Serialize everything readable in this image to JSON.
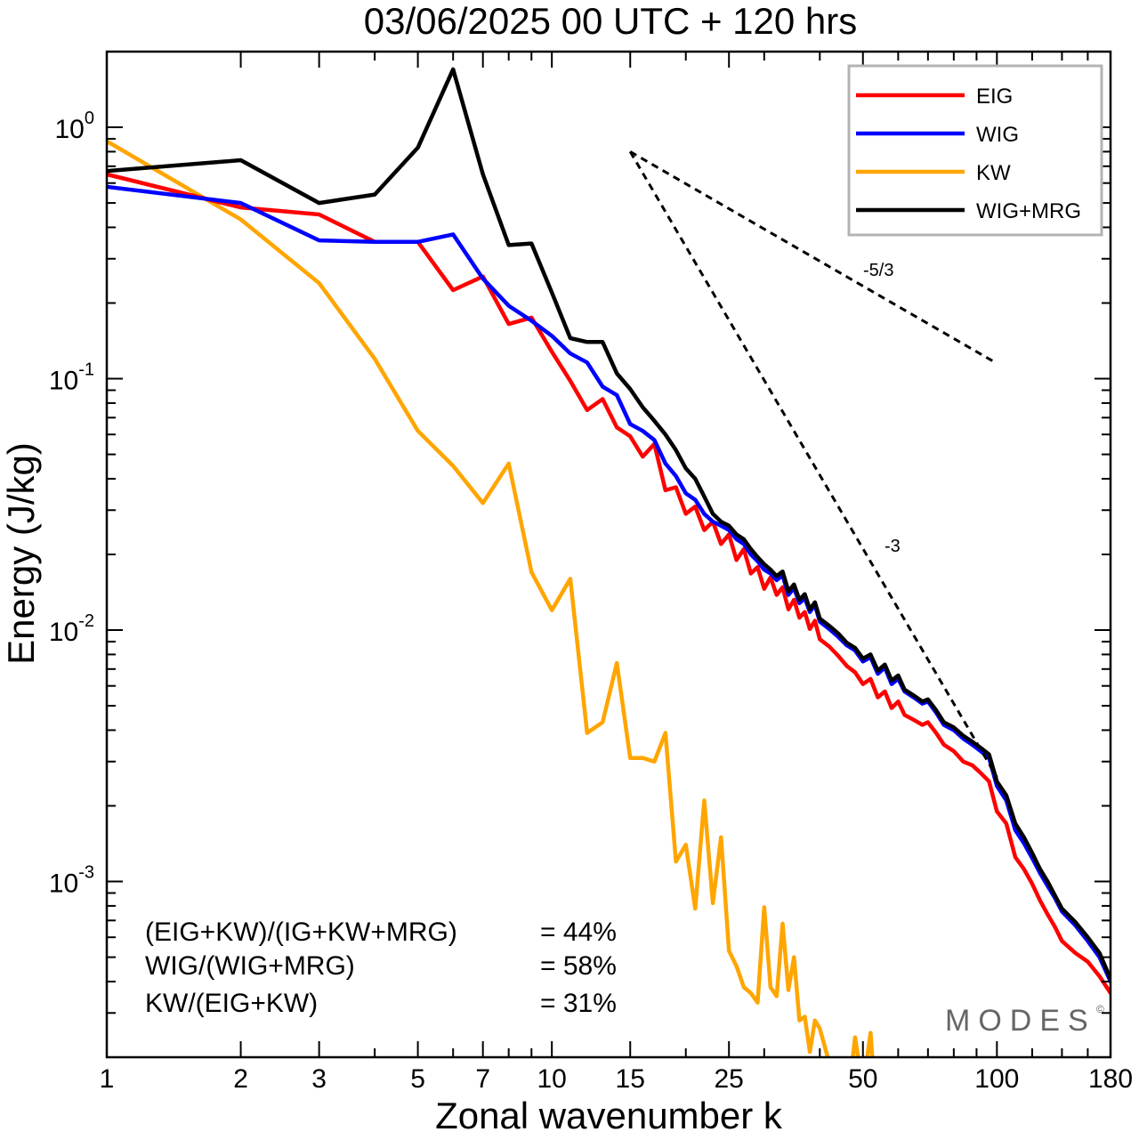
{
  "chart_data": {
    "type": "line",
    "title": "03/06/2025  00 UTC  + 120 hrs",
    "xlabel": "Zonal wavenumber k",
    "ylabel": "Energy (J/kg)",
    "xscale": "log",
    "yscale": "log",
    "xlim": [
      1,
      180
    ],
    "ylim": [
      0.0002,
      2.0
    ],
    "grid": false,
    "legend_position": "top-right",
    "x_ticks": [
      1,
      2,
      3,
      5,
      7,
      10,
      15,
      25,
      50,
      100,
      180
    ],
    "x_tick_labels": [
      "1",
      "2",
      "3",
      "5",
      "7",
      "10",
      "15",
      "25",
      "50",
      "100",
      "180"
    ],
    "y_ticks": [
      {
        "value": 1.0,
        "mantissa": "10",
        "exponent": "0"
      },
      {
        "value": 0.1,
        "mantissa": "10",
        "exponent": "-1"
      },
      {
        "value": 0.01,
        "mantissa": "10",
        "exponent": "-2"
      },
      {
        "value": 0.001,
        "mantissa": "10",
        "exponent": "-3"
      }
    ],
    "series": [
      {
        "name": "EIG",
        "color": "#ff0000",
        "points": [
          [
            1,
            0.65
          ],
          [
            2,
            0.48
          ],
          [
            3,
            0.45
          ],
          [
            4,
            0.35
          ],
          [
            5,
            0.35
          ],
          [
            6,
            0.225
          ],
          [
            7,
            0.255
          ],
          [
            8,
            0.165
          ],
          [
            9,
            0.175
          ],
          [
            10,
            0.128
          ],
          [
            11,
            0.098
          ],
          [
            12,
            0.075
          ],
          [
            13,
            0.083
          ],
          [
            14,
            0.064
          ],
          [
            15,
            0.059
          ],
          [
            16,
            0.049
          ],
          [
            17,
            0.055
          ],
          [
            18,
            0.036
          ],
          [
            19,
            0.037
          ],
          [
            20,
            0.029
          ],
          [
            21,
            0.031
          ],
          [
            22,
            0.025
          ],
          [
            23,
            0.027
          ],
          [
            24,
            0.022
          ],
          [
            25,
            0.024
          ],
          [
            26,
            0.019
          ],
          [
            27,
            0.021
          ],
          [
            28,
            0.0168
          ],
          [
            29,
            0.0178
          ],
          [
            30,
            0.0146
          ],
          [
            31,
            0.0162
          ],
          [
            32,
            0.0138
          ],
          [
            33,
            0.0148
          ],
          [
            34,
            0.0121
          ],
          [
            35,
            0.0132
          ],
          [
            36,
            0.0112
          ],
          [
            37,
            0.0118
          ],
          [
            38,
            0.0101
          ],
          [
            39,
            0.0109
          ],
          [
            40,
            0.0092
          ],
          [
            42,
            0.0086
          ],
          [
            44,
            0.0079
          ],
          [
            46,
            0.0072
          ],
          [
            48,
            0.0068
          ],
          [
            50,
            0.0061
          ],
          [
            52,
            0.0064
          ],
          [
            54,
            0.0054
          ],
          [
            56,
            0.0057
          ],
          [
            58,
            0.0049
          ],
          [
            60,
            0.0052
          ],
          [
            62,
            0.0046
          ],
          [
            65,
            0.0044
          ],
          [
            68,
            0.0042
          ],
          [
            70,
            0.0043
          ],
          [
            73,
            0.0039
          ],
          [
            76,
            0.0035
          ],
          [
            80,
            0.0033
          ],
          [
            84,
            0.003
          ],
          [
            88,
            0.0029
          ],
          [
            92,
            0.0027
          ],
          [
            96,
            0.0025
          ],
          [
            100,
            0.0019
          ],
          [
            105,
            0.0017
          ],
          [
            110,
            0.00125
          ],
          [
            115,
            0.00112
          ],
          [
            120,
            0.00098
          ],
          [
            125,
            0.00084
          ],
          [
            130,
            0.00074
          ],
          [
            135,
            0.00066
          ],
          [
            140,
            0.00058
          ],
          [
            150,
            0.00052
          ],
          [
            160,
            0.00048
          ],
          [
            170,
            0.00042
          ],
          [
            180,
            0.00036
          ]
        ]
      },
      {
        "name": "WIG",
        "color": "#0000ff",
        "points": [
          [
            1,
            0.58
          ],
          [
            2,
            0.5
          ],
          [
            3,
            0.355
          ],
          [
            4,
            0.35
          ],
          [
            5,
            0.35
          ],
          [
            6,
            0.375
          ],
          [
            7,
            0.25
          ],
          [
            8,
            0.195
          ],
          [
            9,
            0.17
          ],
          [
            10,
            0.148
          ],
          [
            11,
            0.126
          ],
          [
            12,
            0.116
          ],
          [
            13,
            0.093
          ],
          [
            14,
            0.086
          ],
          [
            15,
            0.066
          ],
          [
            16,
            0.062
          ],
          [
            17,
            0.057
          ],
          [
            18,
            0.046
          ],
          [
            19,
            0.041
          ],
          [
            20,
            0.035
          ],
          [
            21,
            0.033
          ],
          [
            22,
            0.029
          ],
          [
            23,
            0.027
          ],
          [
            24,
            0.026
          ],
          [
            25,
            0.025
          ],
          [
            26,
            0.023
          ],
          [
            27,
            0.022
          ],
          [
            28,
            0.02
          ],
          [
            29,
            0.0188
          ],
          [
            30,
            0.0174
          ],
          [
            31,
            0.0168
          ],
          [
            32,
            0.0158
          ],
          [
            33,
            0.0165
          ],
          [
            34,
            0.0138
          ],
          [
            35,
            0.0147
          ],
          [
            36,
            0.0128
          ],
          [
            37,
            0.0134
          ],
          [
            38,
            0.0118
          ],
          [
            39,
            0.0126
          ],
          [
            40,
            0.0108
          ],
          [
            42,
            0.0101
          ],
          [
            44,
            0.0094
          ],
          [
            46,
            0.0087
          ],
          [
            48,
            0.0083
          ],
          [
            50,
            0.0075
          ],
          [
            52,
            0.0078
          ],
          [
            54,
            0.0067
          ],
          [
            56,
            0.0071
          ],
          [
            58,
            0.0061
          ],
          [
            60,
            0.0064
          ],
          [
            62,
            0.0057
          ],
          [
            65,
            0.0054
          ],
          [
            68,
            0.0051
          ],
          [
            70,
            0.0052
          ],
          [
            73,
            0.0047
          ],
          [
            76,
            0.0042
          ],
          [
            80,
            0.004
          ],
          [
            84,
            0.0037
          ],
          [
            88,
            0.0035
          ],
          [
            92,
            0.0033
          ],
          [
            96,
            0.0031
          ],
          [
            100,
            0.0024
          ],
          [
            105,
            0.0021
          ],
          [
            110,
            0.0016
          ],
          [
            115,
            0.00142
          ],
          [
            120,
            0.00124
          ],
          [
            125,
            0.00108
          ],
          [
            130,
            0.00096
          ],
          [
            135,
            0.00086
          ],
          [
            140,
            0.00076
          ],
          [
            150,
            0.00067
          ],
          [
            160,
            0.00058
          ],
          [
            170,
            0.0005
          ],
          [
            180,
            0.0004
          ]
        ]
      },
      {
        "name": "KW",
        "color": "#ffa500",
        "points": [
          [
            1,
            0.88
          ],
          [
            2,
            0.43
          ],
          [
            3,
            0.24
          ],
          [
            4,
            0.12
          ],
          [
            5,
            0.062
          ],
          [
            6,
            0.045
          ],
          [
            7,
            0.032
          ],
          [
            8,
            0.046
          ],
          [
            9,
            0.017
          ],
          [
            10,
            0.012
          ],
          [
            11,
            0.016
          ],
          [
            12,
            0.0039
          ],
          [
            13,
            0.0043
          ],
          [
            14,
            0.0074
          ],
          [
            15,
            0.0031
          ],
          [
            16,
            0.0031
          ],
          [
            17,
            0.003
          ],
          [
            18,
            0.0039
          ],
          [
            19,
            0.0012
          ],
          [
            20,
            0.0014
          ],
          [
            21,
            0.00078
          ],
          [
            22,
            0.0021
          ],
          [
            23,
            0.00082
          ],
          [
            24,
            0.0015
          ],
          [
            25,
            0.00053
          ],
          [
            26,
            0.00046
          ],
          [
            27,
            0.00038
          ],
          [
            28,
            0.00036
          ],
          [
            29,
            0.00033
          ],
          [
            30,
            0.00079
          ],
          [
            31,
            0.00038
          ],
          [
            32,
            0.00035
          ],
          [
            33,
            0.00068
          ],
          [
            34,
            0.00037
          ],
          [
            35,
            0.0005
          ],
          [
            36,
            0.00028
          ],
          [
            37,
            0.00029
          ],
          [
            38,
            0.00021
          ],
          [
            39,
            0.00028
          ],
          [
            40,
            0.00026
          ],
          [
            42,
            0.00019
          ],
          [
            44,
            0.00016
          ],
          [
            46,
            0.00012
          ],
          [
            48,
            0.00024
          ],
          [
            50,
            0.00015
          ],
          [
            52,
            0.00025
          ],
          [
            54,
            0.0001
          ]
        ]
      },
      {
        "name": "WIG+MRG",
        "color": "#000000",
        "points": [
          [
            1,
            0.67
          ],
          [
            2,
            0.74
          ],
          [
            3,
            0.5
          ],
          [
            4,
            0.54
          ],
          [
            5,
            0.83
          ],
          [
            6,
            1.7
          ],
          [
            7,
            0.65
          ],
          [
            8,
            0.34
          ],
          [
            9,
            0.345
          ],
          [
            10,
            0.22
          ],
          [
            11,
            0.145
          ],
          [
            12,
            0.14
          ],
          [
            13,
            0.14
          ],
          [
            14,
            0.105
          ],
          [
            15,
            0.091
          ],
          [
            16,
            0.077
          ],
          [
            17,
            0.068
          ],
          [
            18,
            0.06
          ],
          [
            19,
            0.052
          ],
          [
            20,
            0.044
          ],
          [
            21,
            0.04
          ],
          [
            22,
            0.034
          ],
          [
            23,
            0.029
          ],
          [
            24,
            0.027
          ],
          [
            25,
            0.026
          ],
          [
            26,
            0.024
          ],
          [
            27,
            0.023
          ],
          [
            28,
            0.021
          ],
          [
            29,
            0.0195
          ],
          [
            30,
            0.0183
          ],
          [
            31,
            0.0174
          ],
          [
            32,
            0.0164
          ],
          [
            33,
            0.0171
          ],
          [
            34,
            0.0143
          ],
          [
            35,
            0.0152
          ],
          [
            36,
            0.0132
          ],
          [
            37,
            0.0139
          ],
          [
            38,
            0.0121
          ],
          [
            39,
            0.0129
          ],
          [
            40,
            0.0111
          ],
          [
            42,
            0.0104
          ],
          [
            44,
            0.0097
          ],
          [
            46,
            0.0089
          ],
          [
            48,
            0.0085
          ],
          [
            50,
            0.0077
          ],
          [
            52,
            0.008
          ],
          [
            54,
            0.0069
          ],
          [
            56,
            0.0073
          ],
          [
            58,
            0.0063
          ],
          [
            60,
            0.0066
          ],
          [
            62,
            0.0058
          ],
          [
            65,
            0.0055
          ],
          [
            68,
            0.0052
          ],
          [
            70,
            0.0053
          ],
          [
            73,
            0.0048
          ],
          [
            76,
            0.0043
          ],
          [
            80,
            0.0041
          ],
          [
            84,
            0.0038
          ],
          [
            88,
            0.0036
          ],
          [
            92,
            0.0034
          ],
          [
            96,
            0.0032
          ],
          [
            100,
            0.0025
          ],
          [
            105,
            0.0022
          ],
          [
            110,
            0.0017
          ],
          [
            115,
            0.0015
          ],
          [
            120,
            0.0013
          ],
          [
            125,
            0.00112
          ],
          [
            130,
            0.001
          ],
          [
            135,
            0.00088
          ],
          [
            140,
            0.00078
          ],
          [
            150,
            0.00069
          ],
          [
            160,
            0.0006
          ],
          [
            170,
            0.00052
          ],
          [
            180,
            0.00041
          ]
        ]
      }
    ],
    "reference_lines": [
      {
        "label": "-5/3",
        "style": "dashed",
        "points": [
          [
            15,
            0.8
          ],
          [
            100,
            0.115
          ]
        ]
      },
      {
        "label": "-3",
        "style": "dashed",
        "points": [
          [
            15,
            0.8
          ],
          [
            100,
            0.0026
          ]
        ]
      }
    ],
    "annotations": [
      {
        "label": "(EIG+KW)/(IG+KW+MRG)",
        "value": "= 44%"
      },
      {
        "label": "WIG/(WIG+MRG)",
        "value": "= 58%"
      },
      {
        "label": "KW/(EIG+KW)",
        "value": "= 31%"
      }
    ]
  },
  "brand": {
    "text": "MODES",
    "symbol": "©"
  }
}
